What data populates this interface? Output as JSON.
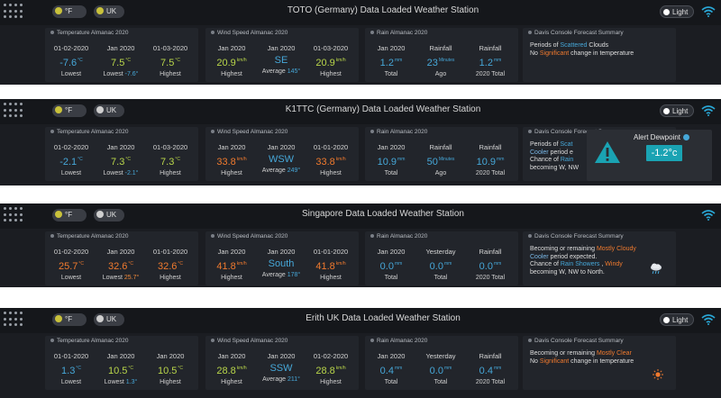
{
  "header": {
    "unit_label": "°F",
    "region_label": "UK",
    "light_label": "Light"
  },
  "stations": [
    {
      "title": "TOTO (Germany) Data Loaded Weather Station",
      "temperature": {
        "title": "Temperature Almanac 2020",
        "cols": [
          {
            "header": "01-02-2020",
            "value": "-7.6",
            "unit": "°C",
            "sub": "Lowest",
            "color": "#46a7d8"
          },
          {
            "header": "Jan 2020",
            "value": "7.5",
            "unit": "°C",
            "sub": "Lowest",
            "sub_value": "-7.6°",
            "color": "#b9d64a"
          },
          {
            "header": "01-03-2020",
            "value": "7.5",
            "unit": "°C",
            "sub": "Highest",
            "color": "#b9d64a"
          }
        ]
      },
      "wind": {
        "title": "Wind Speed Almanac 2020",
        "cols": [
          {
            "header": "Jan 2020",
            "value": "20.9",
            "unit": "km/h",
            "sub": "Highest",
            "color": "#b9d64a"
          },
          {
            "header": "Jan 2020",
            "value": "SE",
            "unit": "",
            "sub": "Average",
            "sub_value": "145°",
            "color": "#46a7d8"
          },
          {
            "header": "01-03-2020",
            "value": "20.9",
            "unit": "km/h",
            "sub": "Highest",
            "color": "#b9d64a"
          }
        ]
      },
      "rain": {
        "title": "Rain Almanac 2020",
        "cols": [
          {
            "header": "Jan 2020",
            "value": "1.2",
            "unit": "mm",
            "sub": "Total",
            "color": "#46a7d8"
          },
          {
            "header": "Rainfall",
            "value": "23",
            "unit": "Minutes",
            "sub": "Ago",
            "color": "#46a7d8"
          },
          {
            "header": "Rainfall",
            "value": "1.2",
            "unit": "mm",
            "sub": "2020 Total",
            "color": "#46a7d8"
          }
        ]
      },
      "forecast": {
        "title": "Davis Console Forecast Summary",
        "line1_a": "Periods of ",
        "line1_hl": "Scattered",
        "line1_b": " Clouds",
        "line2_a": "No ",
        "line2_hl": "Significant",
        "line2_b": " change in temperature"
      }
    },
    {
      "title": "K1TTC (Germany) Data Loaded Weather Station",
      "temperature": {
        "title": "Temperature Almanac 2020",
        "cols": [
          {
            "header": "01-02-2020",
            "value": "-2.1",
            "unit": "°C",
            "sub": "Lowest",
            "color": "#46a7d8"
          },
          {
            "header": "Jan 2020",
            "value": "7.3",
            "unit": "°C",
            "sub": "Lowest",
            "sub_value": "-2.1°",
            "color": "#b9d64a"
          },
          {
            "header": "01-03-2020",
            "value": "7.3",
            "unit": "°C",
            "sub": "Highest",
            "color": "#b9d64a"
          }
        ]
      },
      "wind": {
        "title": "Wind Speed Almanac 2020",
        "cols": [
          {
            "header": "Jan 2020",
            "value": "33.8",
            "unit": "km/h",
            "sub": "Highest",
            "color": "#f07a2e"
          },
          {
            "header": "Jan 2020",
            "value": "WSW",
            "unit": "",
            "sub": "Average",
            "sub_value": "249°",
            "color": "#46a7d8"
          },
          {
            "header": "01-01-2020",
            "value": "33.8",
            "unit": "km/h",
            "sub": "Highest",
            "color": "#f07a2e"
          }
        ]
      },
      "rain": {
        "title": "Rain Almanac 2020",
        "cols": [
          {
            "header": "Jan 2020",
            "value": "10.9",
            "unit": "mm",
            "sub": "Total",
            "color": "#46a7d8"
          },
          {
            "header": "Rainfall",
            "value": "50",
            "unit": "Minutes",
            "sub": "Ago",
            "color": "#46a7d8"
          },
          {
            "header": "Rainfall",
            "value": "10.9",
            "unit": "mm",
            "sub": "2020 Total",
            "color": "#46a7d8"
          }
        ]
      },
      "forecast": {
        "title": "Davis Console Forecast Summary",
        "l1": "Periods of ",
        "l1hl": "Scat",
        "l2hl": "Cooler",
        "l2": " period e",
        "l3": "Chance of ",
        "l3hl": "Rain",
        "l4": "becoming W, NW"
      },
      "alert": {
        "title": "Alert Dewpoint",
        "value": "-1.2°c"
      }
    },
    {
      "title": "Singapore Data Loaded Weather Station",
      "temperature": {
        "title": "Temperature Almanac 2020",
        "cols": [
          {
            "header": "01-02-2020",
            "value": "25.7",
            "unit": "°C",
            "sub": "Lowest",
            "color": "#f07a2e"
          },
          {
            "header": "Jan 2020",
            "value": "32.6",
            "unit": "°C",
            "sub": "Lowest",
            "sub_value": "25.7°",
            "color": "#f07a2e"
          },
          {
            "header": "01-01-2020",
            "value": "32.6",
            "unit": "°C",
            "sub": "Highest",
            "color": "#f07a2e"
          }
        ]
      },
      "wind": {
        "title": "Wind Speed Almanac 2020",
        "cols": [
          {
            "header": "Jan 2020",
            "value": "41.8",
            "unit": "km/h",
            "sub": "Highest",
            "color": "#f07a2e"
          },
          {
            "header": "Jan 2020",
            "value": "South",
            "unit": "",
            "sub": "Average",
            "sub_value": "178°",
            "color": "#46a7d8"
          },
          {
            "header": "01-01-2020",
            "value": "41.8",
            "unit": "km/h",
            "sub": "Highest",
            "color": "#f07a2e"
          }
        ]
      },
      "rain": {
        "title": "Rain Almanac 2020",
        "cols": [
          {
            "header": "Jan 2020",
            "value": "0.0",
            "unit": "mm",
            "sub": "Total",
            "color": "#46a7d8"
          },
          {
            "header": "Yesterday",
            "value": "0.0",
            "unit": "mm",
            "sub": "Total",
            "color": "#46a7d8"
          },
          {
            "header": "Rainfall",
            "value": "0.0",
            "unit": "mm",
            "sub": "2020 Total",
            "color": "#46a7d8"
          }
        ]
      },
      "forecast": {
        "title": "Davis Console Forecast Summary",
        "l1": "Becoming or remaining ",
        "l1hl": "Mostly Cloudy",
        "l2hl": "Cooler",
        "l2": " period expected.",
        "l3": "Chance of ",
        "l3hl": "Rain Showers",
        "l3b": " , ",
        "l3hl2": "Windy",
        "l4": "becoming W, NW to North."
      }
    },
    {
      "title": "Erith UK Data Loaded Weather Station",
      "temperature": {
        "title": "Temperature Almanac 2020",
        "cols": [
          {
            "header": "01-01-2020",
            "value": "1.3",
            "unit": "°C",
            "sub": "Lowest",
            "color": "#46a7d8"
          },
          {
            "header": "Jan 2020",
            "value": "10.5",
            "unit": "°C",
            "sub": "Lowest",
            "sub_value": "1.3°",
            "color": "#b9d64a"
          },
          {
            "header": "Jan 2020",
            "value": "10.5",
            "unit": "°C",
            "sub": "Highest",
            "color": "#b9d64a"
          }
        ]
      },
      "wind": {
        "title": "Wind Speed Almanac 2020",
        "cols": [
          {
            "header": "Jan 2020",
            "value": "28.8",
            "unit": "km/h",
            "sub": "Highest",
            "color": "#b9d64a"
          },
          {
            "header": "Jan 2020",
            "value": "SSW",
            "unit": "",
            "sub": "Average",
            "sub_value": "211°",
            "color": "#46a7d8"
          },
          {
            "header": "01-02-2020",
            "value": "28.8",
            "unit": "km/h",
            "sub": "Highest",
            "color": "#b9d64a"
          }
        ]
      },
      "rain": {
        "title": "Rain Almanac 2020",
        "cols": [
          {
            "header": "Jan 2020",
            "value": "0.4",
            "unit": "mm",
            "sub": "Total",
            "color": "#46a7d8"
          },
          {
            "header": "Yesterday",
            "value": "0.0",
            "unit": "mm",
            "sub": "Total",
            "color": "#46a7d8"
          },
          {
            "header": "Rainfall",
            "value": "0.4",
            "unit": "mm",
            "sub": "2020 Total",
            "color": "#46a7d8"
          }
        ]
      },
      "forecast": {
        "title": "Davis Console Forecast Summary",
        "l1": "Becoming or remaining ",
        "l1hl": "Mostly Clear",
        "l2": "No ",
        "l2hl": "Significant",
        "l2b": " change in temperature"
      }
    }
  ]
}
